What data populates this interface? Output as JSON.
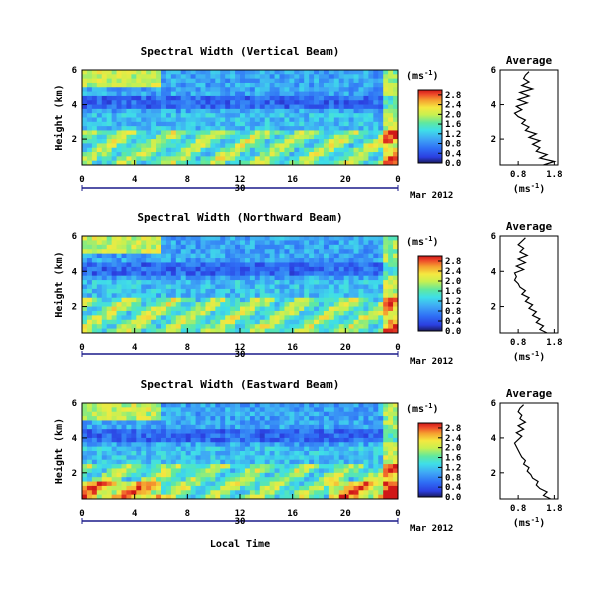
{
  "figure": {
    "common_xlabel": "Local Time"
  },
  "chart_data": [
    {
      "type": "heatmap",
      "title": "Spectral Width (Vertical Beam)",
      "ylabel": "Height (km)",
      "xlabel": "Local Time",
      "x_ticks": [
        "0",
        "4",
        "8",
        "12",
        "16",
        "20",
        "0"
      ],
      "y_ticks": [
        "2",
        "4",
        "6"
      ],
      "xlim": [
        0,
        24
      ],
      "ylim": [
        0.5,
        6.0
      ],
      "date_day": "30",
      "date_month_year": "Mar 2012",
      "colorbar": {
        "unit_label": "(ms",
        "unit_exp": "-1",
        "ticks": [
          "0.0",
          "0.4",
          "0.8",
          "1.2",
          "1.6",
          "2.0",
          "2.4",
          "2.8"
        ],
        "range": [
          0,
          3.0
        ]
      },
      "average_profile": {
        "title": "Average",
        "xlabel": "(ms",
        "xlabel_exp": "-1",
        "x_ticks": [
          "0.8",
          "1.8"
        ],
        "y_ticks": [
          "2",
          "4",
          "6"
        ],
        "xlim": [
          0.3,
          1.9
        ],
        "ylim": [
          0.5,
          6.0
        ],
        "height_km": [
          0.5,
          0.7,
          0.9,
          1.1,
          1.3,
          1.5,
          1.7,
          1.9,
          2.1,
          2.3,
          2.5,
          2.7,
          2.9,
          3.1,
          3.3,
          3.5,
          3.7,
          3.9,
          4.1,
          4.3,
          4.5,
          4.7,
          4.9,
          5.1,
          5.3,
          5.5,
          5.7,
          5.9
        ],
        "width_ms": [
          1.5,
          1.8,
          1.4,
          1.6,
          1.3,
          1.4,
          1.2,
          1.4,
          1.1,
          1.3,
          1.0,
          1.1,
          0.9,
          1.0,
          0.8,
          0.7,
          0.9,
          0.75,
          1.05,
          0.8,
          1.1,
          0.85,
          1.2,
          0.9,
          1.1,
          0.95,
          1.0,
          1.1
        ]
      }
    },
    {
      "type": "heatmap",
      "title": "Spectral Width (Northward Beam)",
      "ylabel": "Height (km)",
      "xlabel": "Local Time",
      "x_ticks": [
        "0",
        "4",
        "8",
        "12",
        "16",
        "20",
        "0"
      ],
      "y_ticks": [
        "2",
        "4",
        "6"
      ],
      "xlim": [
        0,
        24
      ],
      "ylim": [
        0.5,
        6.0
      ],
      "date_day": "30",
      "date_month_year": "Mar 2012",
      "colorbar": {
        "unit_label": "(ms",
        "unit_exp": "-1",
        "ticks": [
          "0.0",
          "0.4",
          "0.8",
          "1.2",
          "1.6",
          "2.0",
          "2.4",
          "2.8"
        ],
        "range": [
          0,
          3.0
        ]
      },
      "average_profile": {
        "title": "Average",
        "xlabel": "(ms",
        "xlabel_exp": "-1",
        "x_ticks": [
          "0.8",
          "1.8"
        ],
        "y_ticks": [
          "2",
          "4",
          "6"
        ],
        "xlim": [
          0.3,
          1.9
        ],
        "ylim": [
          0.5,
          6.0
        ],
        "height_km": [
          0.5,
          0.7,
          0.9,
          1.1,
          1.3,
          1.5,
          1.7,
          1.9,
          2.1,
          2.3,
          2.5,
          2.7,
          2.9,
          3.1,
          3.3,
          3.5,
          3.7,
          3.9,
          4.1,
          4.3,
          4.5,
          4.7,
          4.9,
          5.1,
          5.3,
          5.5,
          5.7,
          5.9
        ],
        "width_ms": [
          1.6,
          1.4,
          1.5,
          1.3,
          1.4,
          1.2,
          1.3,
          1.1,
          1.2,
          1.0,
          1.1,
          0.9,
          1.0,
          0.85,
          0.8,
          0.7,
          0.75,
          0.7,
          0.95,
          0.75,
          1.0,
          0.8,
          1.05,
          0.85,
          0.95,
          0.8,
          0.9,
          1.0
        ]
      }
    },
    {
      "type": "heatmap",
      "title": "Spectral Width (Eastward Beam)",
      "ylabel": "Height (km)",
      "xlabel": "Local Time",
      "x_ticks": [
        "0",
        "4",
        "8",
        "12",
        "16",
        "20",
        "0"
      ],
      "y_ticks": [
        "2",
        "4",
        "6"
      ],
      "xlim": [
        0,
        24
      ],
      "ylim": [
        0.5,
        6.0
      ],
      "date_day": "30",
      "date_month_year": "Mar 2012",
      "colorbar": {
        "unit_label": "(ms",
        "unit_exp": "-1",
        "ticks": [
          "0.0",
          "0.4",
          "0.8",
          "1.2",
          "1.6",
          "2.0",
          "2.4",
          "2.8"
        ],
        "range": [
          0,
          3.0
        ]
      },
      "average_profile": {
        "title": "Average",
        "xlabel": "(ms",
        "xlabel_exp": "-1",
        "x_ticks": [
          "0.8",
          "1.8"
        ],
        "y_ticks": [
          "2",
          "4",
          "6"
        ],
        "xlim": [
          0.3,
          1.9
        ],
        "ylim": [
          0.5,
          6.0
        ],
        "height_km": [
          0.5,
          0.7,
          0.9,
          1.1,
          1.3,
          1.5,
          1.7,
          1.9,
          2.1,
          2.3,
          2.5,
          2.7,
          2.9,
          3.1,
          3.3,
          3.5,
          3.7,
          3.9,
          4.1,
          4.3,
          4.5,
          4.7,
          4.9,
          5.1,
          5.3,
          5.5,
          5.7,
          5.9
        ],
        "width_ms": [
          1.7,
          1.5,
          1.6,
          1.4,
          1.3,
          1.35,
          1.2,
          1.15,
          1.05,
          1.1,
          0.95,
          1.0,
          0.9,
          0.85,
          0.8,
          0.75,
          0.7,
          0.8,
          0.9,
          0.75,
          0.95,
          0.8,
          1.0,
          0.85,
          0.9,
          0.8,
          0.85,
          0.95
        ]
      }
    }
  ]
}
